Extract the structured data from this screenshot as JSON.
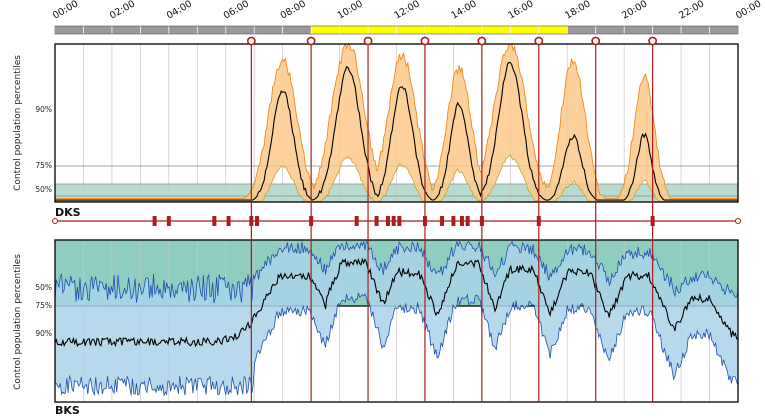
{
  "chart_data": {
    "type": "area",
    "x_ticks": [
      "00:00",
      "02:00",
      "04:00",
      "06:00",
      "08:00",
      "10:00",
      "12:00",
      "14:00",
      "16:00",
      "18:00",
      "20:00",
      "22:00",
      "00:00"
    ],
    "highlight_band": {
      "start_hour": 9.0,
      "end_hour": 18.0,
      "color": "#ffff00"
    },
    "timeline_color": "#999999",
    "event_lines_hours": [
      6.9,
      9.0,
      11.0,
      13.0,
      15.0,
      17.0,
      19.0,
      21.0
    ],
    "event_color": "#aa1e1e",
    "middle_event_marks_hours": [
      3.5,
      4.0,
      5.6,
      6.1,
      6.9,
      7.1,
      9.0,
      10.6,
      11.3,
      11.7,
      11.9,
      12.1,
      13.0,
      13.6,
      14.0,
      14.3,
      14.5,
      15.0,
      17.0,
      21.0
    ],
    "panels": [
      {
        "id": "dks",
        "label": "DKS",
        "ylabel": "Control population percentiles",
        "percentile_labels": [
          {
            "text": "90%",
            "level": 0.9
          },
          {
            "text": "75%",
            "level": 0.75
          },
          {
            "text": "50%",
            "level": 0.5
          }
        ],
        "band_color": "#fcc98a",
        "band_edge_color": "#f08a1c",
        "reference_fill": "#b8ddd0",
        "line_color": "#000000",
        "peaks": [
          {
            "hour": 8.0,
            "median": 0.7,
            "upper": 0.9,
            "width": 0.7
          },
          {
            "hour": 10.3,
            "median": 0.85,
            "upper": 1.0,
            "width": 0.8
          },
          {
            "hour": 12.2,
            "median": 0.73,
            "upper": 0.93,
            "width": 0.7
          },
          {
            "hour": 14.2,
            "median": 0.62,
            "upper": 0.85,
            "width": 0.6
          },
          {
            "hour": 16.0,
            "median": 0.88,
            "upper": 1.0,
            "width": 0.8
          },
          {
            "hour": 18.2,
            "median": 0.42,
            "upper": 0.9,
            "width": 0.6
          },
          {
            "hour": 20.7,
            "median": 0.42,
            "upper": 0.8,
            "width": 0.5
          }
        ]
      },
      {
        "id": "bks",
        "label": "BKS",
        "ylabel": "Control population percentiles",
        "percentile_labels": [
          {
            "text": "50%",
            "level": 0.5
          },
          {
            "text": "75%",
            "level": 0.75
          },
          {
            "text": "90%",
            "level": 0.9
          }
        ],
        "band_color": "#a9d3e8",
        "band_edge_color": "#1f4fb0",
        "reference_fill": "#8ecdc0",
        "line_color": "#000000",
        "night_level": 0.63,
        "peaks": [
          {
            "hour": 8.4,
            "median": 0.22,
            "upper": 0.05,
            "width": 1.3
          },
          {
            "hour": 10.5,
            "median": 0.14,
            "upper": 0.03,
            "width": 1.1
          },
          {
            "hour": 12.4,
            "median": 0.2,
            "upper": 0.05,
            "width": 1.0
          },
          {
            "hour": 14.5,
            "median": 0.15,
            "upper": 0.03,
            "width": 1.0
          },
          {
            "hour": 16.4,
            "median": 0.18,
            "upper": 0.05,
            "width": 1.0
          },
          {
            "hour": 18.4,
            "median": 0.2,
            "upper": 0.06,
            "width": 1.0
          },
          {
            "hour": 20.5,
            "median": 0.22,
            "upper": 0.08,
            "width": 1.0
          },
          {
            "hour": 22.7,
            "median": 0.36,
            "upper": 0.22,
            "width": 0.8
          }
        ]
      }
    ]
  }
}
